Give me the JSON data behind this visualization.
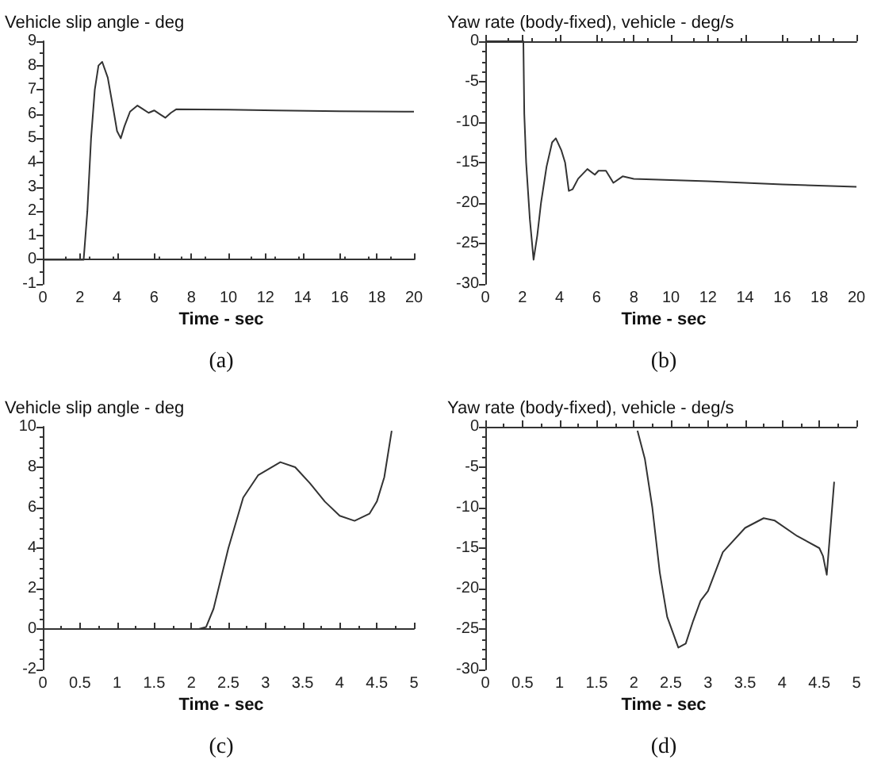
{
  "chart_data": [
    {
      "type": "line",
      "ylabel": "Vehicle slip angle - deg",
      "xlabel": "Time - sec",
      "annotations": [
        "(a)"
      ],
      "xlim": [
        0,
        20
      ],
      "xticks": [
        0,
        2,
        4,
        6,
        8,
        10,
        12,
        14,
        16,
        18,
        20
      ],
      "ylim": [
        -1,
        9
      ],
      "yticks": [
        -1,
        0,
        1,
        2,
        3,
        4,
        5,
        6,
        7,
        8,
        9
      ],
      "marker": "none",
      "line_style": "solid",
      "series": [
        {
          "color": "#333333",
          "x": [
            0,
            2.2,
            2.4,
            2.6,
            2.8,
            3.0,
            3.2,
            3.5,
            3.8,
            4.0,
            4.2,
            4.4,
            4.7,
            5.1,
            5.4,
            5.7,
            6.0,
            6.3,
            6.6,
            6.9,
            7.2,
            10,
            12.6,
            16,
            20
          ],
          "values": [
            0,
            0,
            2,
            5,
            7,
            8.0,
            8.15,
            7.5,
            6.2,
            5.3,
            5.0,
            5.5,
            6.1,
            6.35,
            6.2,
            6.05,
            6.15,
            6.0,
            5.85,
            6.05,
            6.2,
            6.18,
            6.15,
            6.12,
            6.1
          ]
        }
      ]
    },
    {
      "type": "line",
      "ylabel": "Yaw rate (body-fixed), vehicle - deg/s",
      "xlabel": "Time - sec",
      "annotations": [
        "(b)"
      ],
      "xlim": [
        0,
        20
      ],
      "xticks": [
        0,
        2,
        4,
        6,
        8,
        10,
        12,
        14,
        16,
        18,
        20
      ],
      "ylim": [
        -30,
        0
      ],
      "yticks": [
        -30,
        -25,
        -20,
        -15,
        -10,
        -5,
        0
      ],
      "marker": "none",
      "line_style": "solid",
      "series": [
        {
          "color": "#333333",
          "x": [
            0,
            2.05,
            2.1,
            2.2,
            2.4,
            2.6,
            2.8,
            3.0,
            3.3,
            3.6,
            3.8,
            4.1,
            4.3,
            4.5,
            4.7,
            5.0,
            5.5,
            5.9,
            6.1,
            6.5,
            6.9,
            7.4,
            8,
            12,
            16,
            20
          ],
          "values": [
            0,
            0,
            -9,
            -15,
            -22,
            -27,
            -24,
            -20,
            -15.5,
            -12.5,
            -12,
            -13.5,
            -15,
            -18.5,
            -18.3,
            -17,
            -15.8,
            -16.5,
            -16,
            -16,
            -17.5,
            -16.7,
            -17,
            -17.3,
            -17.7,
            -18
          ]
        }
      ]
    },
    {
      "type": "line",
      "ylabel": "Vehicle slip angle - deg",
      "xlabel": "Time - sec",
      "annotations": [
        "(c)"
      ],
      "xlim": [
        0,
        5
      ],
      "xticks": [
        0,
        0.5,
        1,
        1.5,
        2,
        2.5,
        3,
        3.5,
        4,
        4.5,
        5
      ],
      "ylim": [
        -2,
        10
      ],
      "yticks": [
        -2,
        0,
        2,
        4,
        6,
        8,
        10
      ],
      "marker": "none",
      "line_style": "solid",
      "series": [
        {
          "color": "#333333",
          "x": [
            0,
            2.1,
            2.2,
            2.3,
            2.5,
            2.7,
            2.9,
            3.2,
            3.4,
            3.6,
            3.8,
            4.0,
            4.2,
            4.4,
            4.5,
            4.6,
            4.7
          ],
          "values": [
            0,
            0,
            0.1,
            1,
            4,
            6.5,
            7.6,
            8.25,
            8.0,
            7.2,
            6.3,
            5.6,
            5.35,
            5.7,
            6.3,
            7.5,
            9.8
          ]
        }
      ]
    },
    {
      "type": "line",
      "ylabel": "Yaw rate (body-fixed), vehicle - deg/s",
      "xlabel": "Time - sec",
      "annotations": [
        "(d)"
      ],
      "xlim": [
        0,
        5
      ],
      "xticks": [
        0,
        0.5,
        1,
        1.5,
        2,
        2.5,
        3,
        3.5,
        4,
        4.5,
        5
      ],
      "ylim": [
        -30,
        0
      ],
      "yticks": [
        -30,
        -25,
        -20,
        -15,
        -10,
        -5,
        0
      ],
      "marker": "none",
      "line_style": "solid",
      "series": [
        {
          "color": "#333333",
          "x": [
            2.05,
            2.15,
            2.25,
            2.35,
            2.45,
            2.6,
            2.7,
            2.8,
            2.9,
            3.0,
            3.2,
            3.5,
            3.75,
            3.9,
            4.2,
            4.5,
            4.55,
            4.6,
            4.7
          ],
          "values": [
            -0.5,
            -4,
            -10,
            -18,
            -23.5,
            -27.3,
            -26.8,
            -24,
            -21.5,
            -20.3,
            -15.5,
            -12.5,
            -11.3,
            -11.6,
            -13.5,
            -15,
            -16,
            -18.3,
            -6.8
          ]
        }
      ]
    }
  ]
}
